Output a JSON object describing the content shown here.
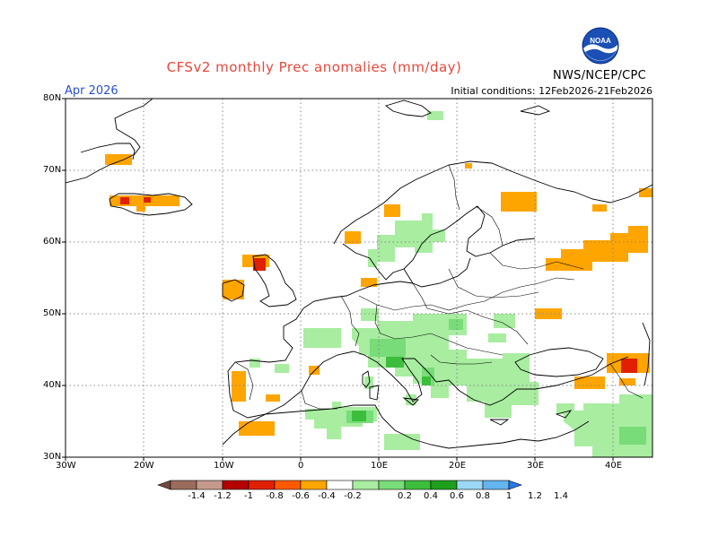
{
  "title": "CFSv2 monthly Prec anomalies (mm/day)",
  "valid_month": "Apr 2026",
  "initial_conditions": "Initial conditions: 12Feb2026-21Feb2026",
  "agency": "NWS/NCEP/CPC",
  "logo_text": "NOAA",
  "lat_labels": [
    "80N",
    "70N",
    "60N",
    "50N",
    "40N",
    "30N"
  ],
  "lon_labels": [
    "30W",
    "20W",
    "10W",
    "0",
    "10E",
    "20E",
    "30E",
    "40E"
  ],
  "colorbar": {
    "ticks": [
      "-1.4",
      "-1.2",
      "-1",
      "-0.8",
      "-0.6",
      "-0.4",
      "-0.2",
      "0.2",
      "0.4",
      "0.6",
      "0.8",
      "1",
      "1.2",
      "1.4"
    ],
    "colors": [
      "#6e4a3c",
      "#9b6b5c",
      "#c49a8c",
      "#b40000",
      "#e02000",
      "#ff5a00",
      "#ffa500",
      "#ffffff",
      "#a8eda0",
      "#78dc78",
      "#3cbe3c",
      "#1ea01e",
      "#9bd8f5",
      "#64b4f0",
      "#2878e6"
    ]
  },
  "accent": {
    "dry": "#ffa500",
    "wet": "#78dc78"
  }
}
